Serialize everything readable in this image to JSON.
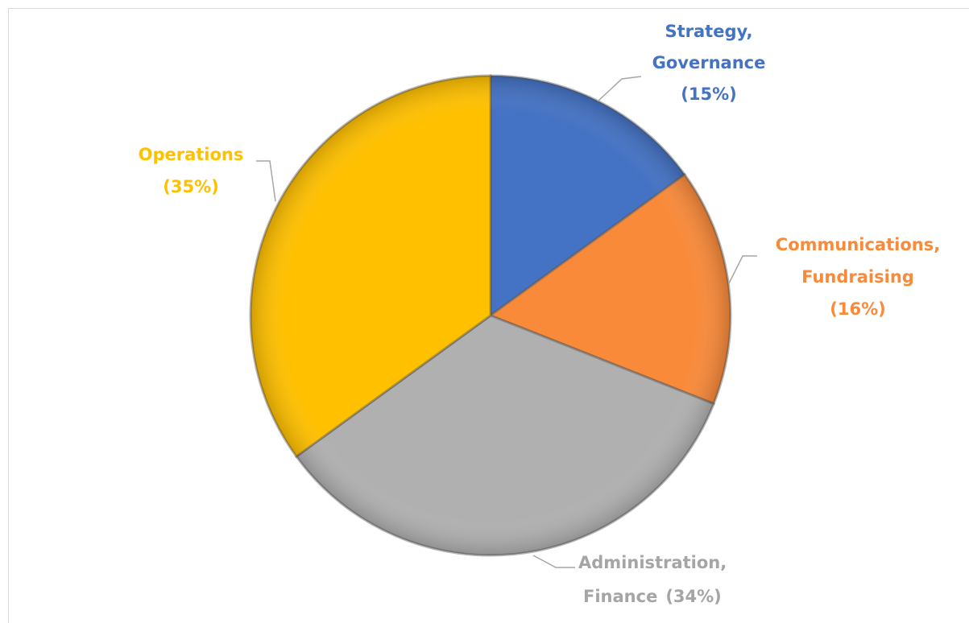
{
  "chart_data": {
    "type": "pie",
    "categories": [
      "Strategy, Governance",
      "Communications, Fundraising",
      "Administration, Finance",
      "Operations"
    ],
    "values": [
      15,
      16,
      34,
      35
    ],
    "value_labels": [
      "(15%)",
      "(16%)",
      "(34%)",
      "(35%)"
    ],
    "colors": [
      "#4472c4",
      "#f98a3a",
      "#b0b0b0",
      "#ffc000"
    ]
  }
}
